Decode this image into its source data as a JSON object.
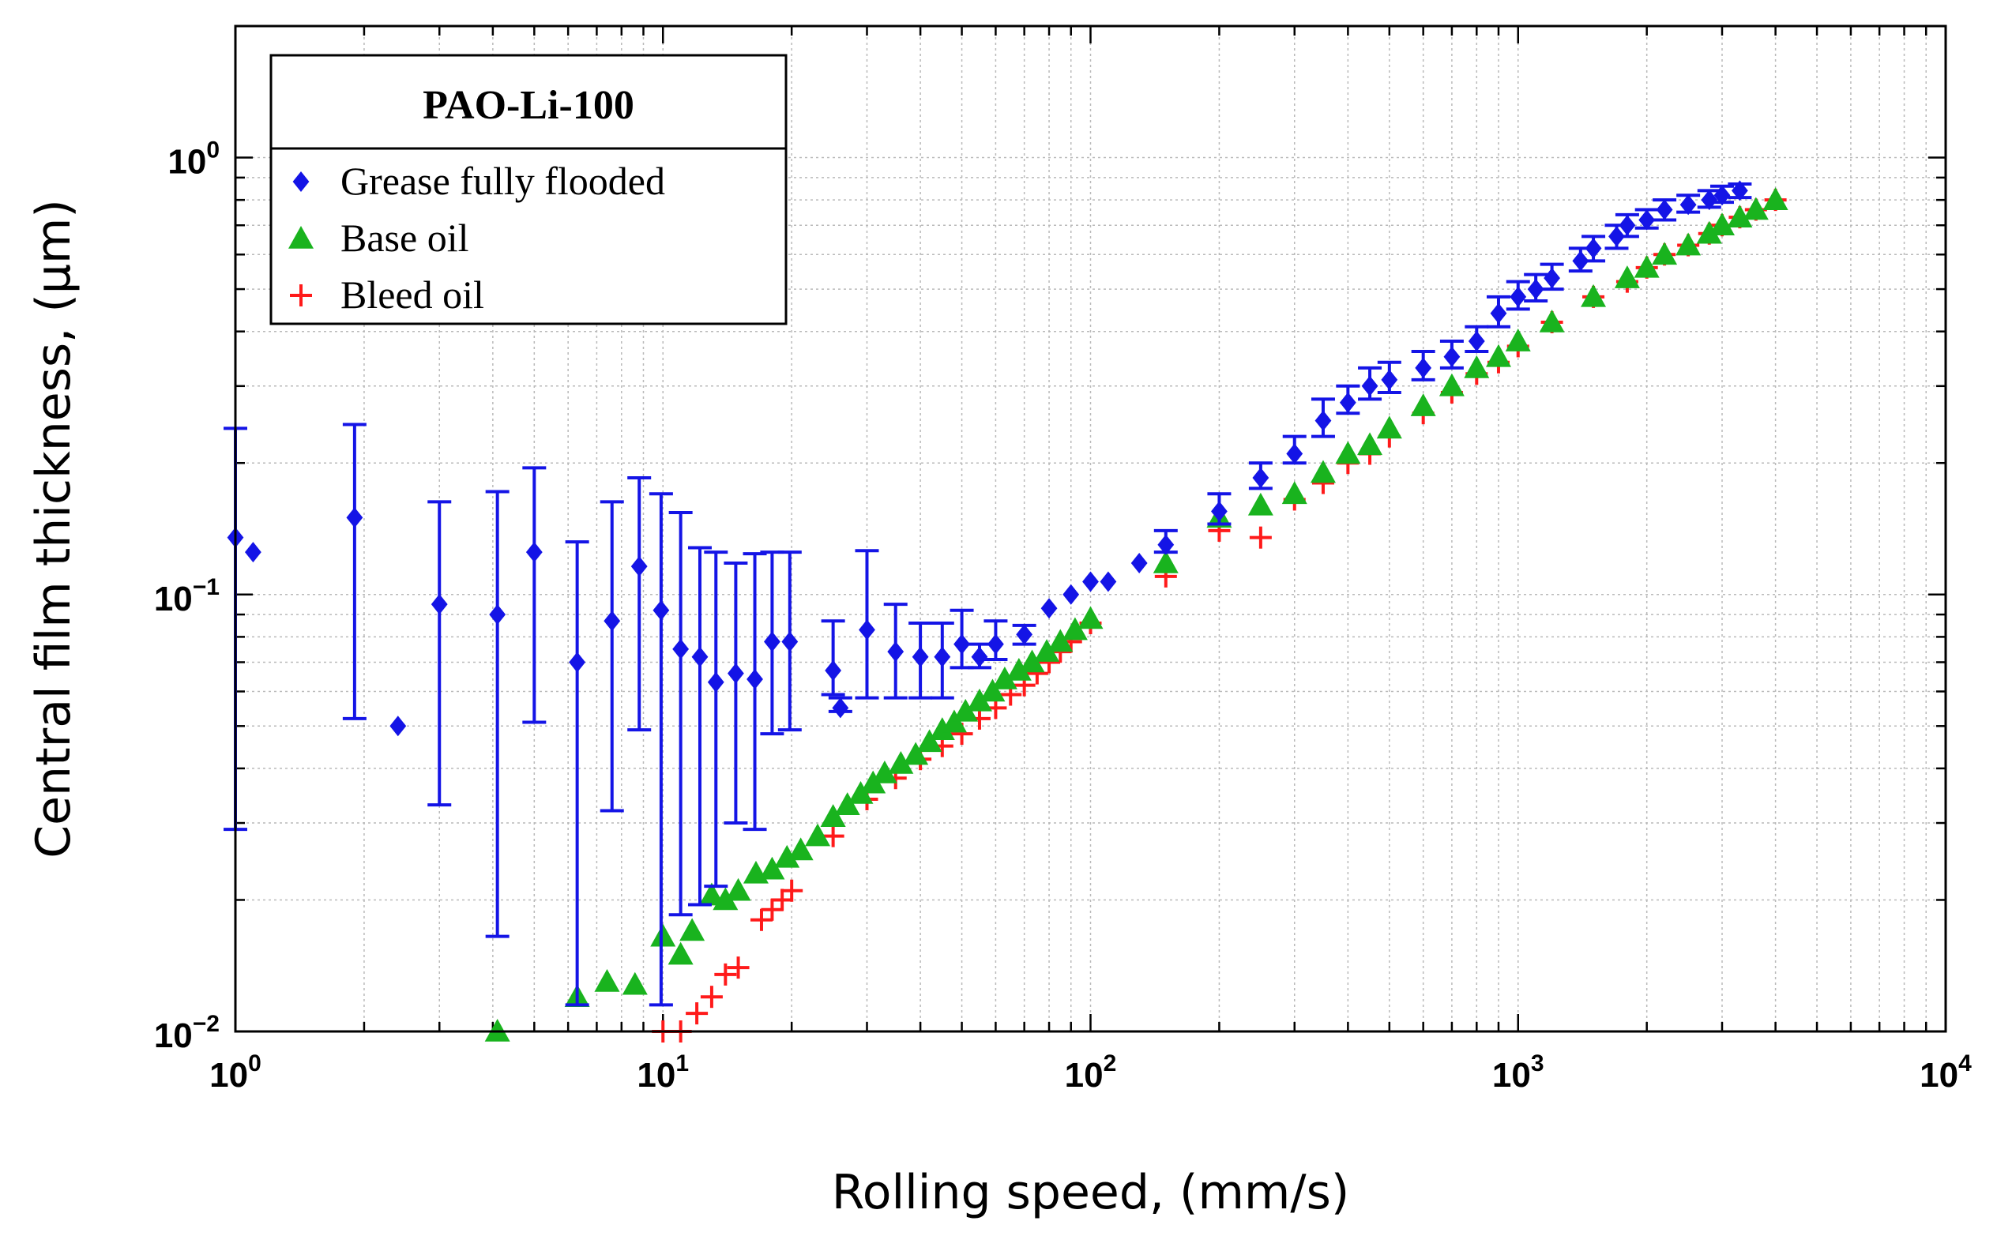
{
  "chart_data": {
    "type": "scatter",
    "title": "",
    "xlabel": "Rolling speed, (mm/s)",
    "ylabel": "Central film thickness, (µm)",
    "xscale": "log",
    "yscale": "log",
    "xlim": [
      1,
      10000
    ],
    "ylim": [
      0.01,
      2
    ],
    "grid": true,
    "x_ticks": [
      {
        "value": 1,
        "base": "10",
        "exp": "0"
      },
      {
        "value": 10,
        "base": "10",
        "exp": "1"
      },
      {
        "value": 100,
        "base": "10",
        "exp": "2"
      },
      {
        "value": 1000,
        "base": "10",
        "exp": "3"
      },
      {
        "value": 10000,
        "base": "10",
        "exp": "4"
      }
    ],
    "y_ticks": [
      {
        "value": 0.01,
        "base": "10",
        "exp": "−2"
      },
      {
        "value": 0.1,
        "base": "10",
        "exp": "−1"
      },
      {
        "value": 1,
        "base": "10",
        "exp": "0"
      }
    ],
    "legend": {
      "title": "PAO-Li-100",
      "position": "top-left",
      "entries": [
        {
          "label": "Grease fully flooded",
          "marker": "diamond",
          "color": "#1414e6"
        },
        {
          "label": "Base oil",
          "marker": "triangle",
          "color": "#19b31e"
        },
        {
          "label": "Bleed oil",
          "marker": "plus",
          "color": "#ff1a1a"
        }
      ]
    },
    "series": [
      {
        "name": "Grease fully flooded",
        "marker": "diamond",
        "color": "#1414e6",
        "x": [
          1.0,
          1.1,
          1.9,
          2.4,
          3.0,
          4.1,
          5.0,
          6.3,
          7.6,
          8.8,
          9.9,
          11.0,
          12.2,
          13.3,
          14.8,
          16.4,
          18.0,
          19.8,
          25.0,
          26.0,
          30.0,
          35.0,
          40.0,
          45.0,
          50.0,
          55.0,
          60.0,
          70.0,
          80.0,
          90.0,
          100.0,
          110.0,
          130.0,
          150.0,
          200.0,
          250.0,
          300.0,
          350.0,
          400.0,
          450.0,
          500.0,
          600.0,
          700.0,
          800.0,
          900.0,
          1000.0,
          1100.0,
          1200.0,
          1400.0,
          1500.0,
          1700.0,
          1800.0,
          2000.0,
          2200.0,
          2500.0,
          2800.0,
          3000.0,
          3300.0
        ],
        "y": [
          0.135,
          0.125,
          0.15,
          0.05,
          0.095,
          0.09,
          0.125,
          0.07,
          0.087,
          0.116,
          0.092,
          0.075,
          0.072,
          0.063,
          0.066,
          0.064,
          0.078,
          0.078,
          0.067,
          0.055,
          0.083,
          0.074,
          0.072,
          0.072,
          0.077,
          0.072,
          0.077,
          0.081,
          0.093,
          0.1,
          0.107,
          0.107,
          0.118,
          0.13,
          0.155,
          0.185,
          0.21,
          0.25,
          0.275,
          0.3,
          0.31,
          0.33,
          0.35,
          0.38,
          0.44,
          0.48,
          0.5,
          0.53,
          0.58,
          0.62,
          0.66,
          0.7,
          0.72,
          0.76,
          0.78,
          0.8,
          0.82,
          0.84
        ],
        "yerr_low": [
          0.029,
          null,
          0.052,
          null,
          0.033,
          0.0165,
          0.051,
          0.0115,
          0.032,
          0.049,
          0.0115,
          0.0185,
          0.0195,
          0.0215,
          0.03,
          0.029,
          0.048,
          0.049,
          0.059,
          0.054,
          0.058,
          0.058,
          0.058,
          0.058,
          0.068,
          0.068,
          0.071,
          0.077,
          null,
          null,
          null,
          null,
          null,
          0.125,
          0.145,
          0.175,
          0.2,
          0.23,
          0.26,
          0.28,
          0.29,
          0.31,
          0.33,
          0.36,
          0.41,
          0.45,
          0.47,
          0.5,
          0.55,
          0.58,
          0.62,
          0.66,
          0.69,
          0.72,
          0.75,
          0.77,
          0.79,
          0.81
        ],
        "yerr_high": [
          0.24,
          null,
          0.245,
          null,
          0.163,
          0.172,
          0.195,
          0.132,
          0.163,
          0.185,
          0.17,
          0.154,
          0.128,
          0.125,
          0.118,
          0.124,
          0.125,
          0.125,
          0.087,
          0.058,
          0.126,
          0.095,
          0.086,
          0.086,
          0.092,
          0.077,
          0.087,
          0.085,
          null,
          null,
          null,
          null,
          null,
          0.14,
          0.17,
          0.2,
          0.23,
          0.28,
          0.3,
          0.33,
          0.34,
          0.36,
          0.38,
          0.41,
          0.48,
          0.52,
          0.54,
          0.57,
          0.62,
          0.66,
          0.7,
          0.74,
          0.76,
          0.8,
          0.82,
          0.84,
          0.86,
          0.87
        ]
      },
      {
        "name": "Base oil",
        "marker": "triangle",
        "color": "#19b31e",
        "x": [
          4.1,
          6.3,
          7.4,
          8.6,
          10.0,
          11.0,
          11.7,
          13.0,
          14.0,
          15.0,
          16.5,
          18.0,
          19.5,
          21.0,
          23.0,
          25.0,
          27.0,
          29.0,
          31.0,
          33.0,
          36.0,
          39.0,
          42.0,
          45.0,
          48.0,
          51.0,
          55.0,
          59.0,
          63.0,
          68.0,
          73.0,
          79.0,
          85.0,
          92.0,
          100.0,
          150.0,
          200.0,
          250.0,
          300.0,
          350.0,
          400.0,
          450.0,
          500.0,
          600.0,
          700.0,
          800.0,
          900.0,
          1000.0,
          1200.0,
          1500.0,
          1800.0,
          2000.0,
          2200.0,
          2500.0,
          2800.0,
          3000.0,
          3300.0,
          3600.0,
          4000.0
        ],
        "y": [
          0.01,
          0.012,
          0.013,
          0.0128,
          0.0165,
          0.015,
          0.017,
          0.0205,
          0.02,
          0.021,
          0.023,
          0.0235,
          0.025,
          0.026,
          0.028,
          0.031,
          0.033,
          0.035,
          0.037,
          0.039,
          0.041,
          0.043,
          0.046,
          0.049,
          0.051,
          0.054,
          0.057,
          0.06,
          0.064,
          0.067,
          0.07,
          0.074,
          0.078,
          0.083,
          0.088,
          0.118,
          0.15,
          0.16,
          0.17,
          0.19,
          0.21,
          0.22,
          0.24,
          0.27,
          0.3,
          0.33,
          0.35,
          0.38,
          0.42,
          0.48,
          0.53,
          0.56,
          0.6,
          0.63,
          0.67,
          0.7,
          0.73,
          0.76,
          0.8
        ]
      },
      {
        "name": "Bleed oil",
        "marker": "plus",
        "color": "#ff1a1a",
        "x": [
          10.0,
          11.0,
          12.0,
          13.0,
          14.0,
          15.0,
          17.0,
          18.0,
          19.0,
          20.0,
          25.0,
          30.0,
          35.0,
          40.0,
          45.0,
          50.0,
          55.0,
          60.0,
          65.0,
          70.0,
          75.0,
          80.0,
          85.0,
          90.0,
          100.0,
          150.0,
          200.0,
          250.0,
          300.0,
          350.0,
          400.0,
          450.0,
          500.0,
          600.0,
          700.0,
          800.0,
          900.0,
          1000.0,
          1200.0,
          1500.0,
          1800.0,
          2000.0,
          2200.0,
          2500.0,
          2800.0,
          3000.0,
          3300.0,
          3600.0,
          4000.0
        ],
        "y": [
          0.01,
          0.01,
          0.011,
          0.012,
          0.0135,
          0.014,
          0.018,
          0.019,
          0.02,
          0.021,
          0.028,
          0.034,
          0.038,
          0.042,
          0.045,
          0.048,
          0.052,
          0.055,
          0.059,
          0.062,
          0.066,
          0.07,
          0.074,
          0.078,
          0.086,
          0.11,
          0.14,
          0.135,
          0.165,
          0.18,
          0.2,
          0.21,
          0.23,
          0.26,
          0.29,
          0.32,
          0.34,
          0.37,
          0.42,
          0.48,
          0.52,
          0.56,
          0.6,
          0.63,
          0.67,
          0.7,
          0.73,
          0.76,
          0.8
        ]
      }
    ]
  }
}
